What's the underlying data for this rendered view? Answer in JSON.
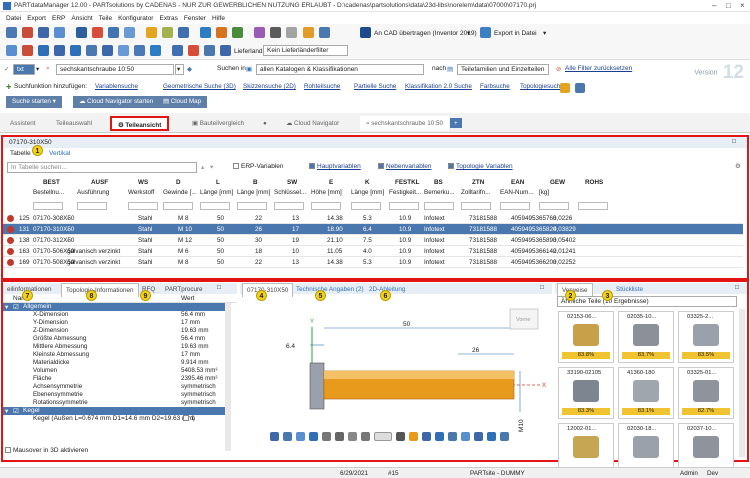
{
  "window": {
    "title": "PARTdataManager 12.00 - PARTsolutions by CADENAS - NUR ZUR GEWERBLICHEN NUTZUNG ERLAUBT - D:\\cadenas\\partsolutions\\data\\23d-libs\\norelem\\data\\07000\\07170.prj"
  },
  "menu": [
    "Datei",
    "Export",
    "ERP",
    "Ansicht",
    "Teile",
    "Konfigurator",
    "Extras",
    "Fenster",
    "Hilfe"
  ],
  "toolbar": {
    "cad_transfer": "An CAD übertragen (Inventor 2019)",
    "export": "Export in Datei",
    "supplier_label": "Lieferland:",
    "supplier_value": "Kein Lieferländerfilter"
  },
  "search": {
    "mode": "txt",
    "query": "sechskantschraube 10:50",
    "in_label": "Suchen in",
    "scope": "allen Katalogen & Klassifikationen",
    "after_label": "nach",
    "after_value": "Teilefamilien und Einzelteilen",
    "reset": "Alle Filter zurücksetzen"
  },
  "version": {
    "label": "Version",
    "number": "12"
  },
  "suggestions": {
    "label": "Suchfunktion hinzufügen:",
    "items": [
      "Variablensuche",
      "Geometrische Suche (3D)",
      "Skizzensuche (2D)",
      "Rohteilsuche",
      "Partielle Suche",
      "Klassifikation 2.0 Suche",
      "Farbsuche",
      "Topologiesuche"
    ]
  },
  "buttons": {
    "start_search": "Suche starten",
    "navigator_start": "Cloud Navigator starten",
    "map": "Cloud Map"
  },
  "tabs": [
    "Assistent",
    "Teileauswahl",
    "Teileansicht",
    "Bauteilvergleich",
    "Cloud Navigator",
    "sechskantschraube 10:50"
  ],
  "part": {
    "id": "07170-310X50",
    "subtabs": [
      "Tabelle",
      "Vertikal"
    ],
    "filter_placeholder": "In Tabelle suchen...",
    "options": [
      "ERP-Variablen",
      "Hauptvariablen",
      "Nebenvariablen",
      "Topologie Variablen"
    ]
  },
  "table": {
    "columns": [
      "BEST",
      "AUSF",
      "WS",
      "D",
      "L",
      "B",
      "SW",
      "E",
      "K",
      "FESTKL",
      "BS",
      "ZTN",
      "EAN",
      "GEW",
      "ROHS"
    ],
    "subheaders": [
      "Bestellnu...",
      "Ausführung",
      "Werkstoff",
      "Gewinde [...",
      "Länge [mm]",
      "Länge [mm]",
      "Schlüssel...",
      "Höhe [mm]",
      "Länge [mm]",
      "Festigkeit...",
      "Bemerku...",
      "Zolltarifn...",
      "EAN-Num...",
      "[kg]",
      ""
    ],
    "rows": [
      {
        "n": "125",
        "best": "07170-308X50",
        "ausf": "-",
        "ws": "Stahl",
        "d": "M 8",
        "l": "50",
        "b": "22",
        "sw": "13",
        "e": "14.38",
        "k": "5.3",
        "fk": "10.9",
        "bs": "Infotext",
        "ztn": "73181588",
        "ean": "4059495365763",
        "gew": "0,0226"
      },
      {
        "n": "131",
        "best": "07170-310X50",
        "ausf": "-",
        "ws": "Stahl",
        "d": "M 10",
        "l": "50",
        "b": "26",
        "sw": "17",
        "e": "18.90",
        "k": "6.4",
        "fk": "10.9",
        "bs": "Infotext",
        "ztn": "73181588",
        "ean": "4059495365824",
        "gew": "0,03829"
      },
      {
        "n": "138",
        "best": "07170-312X50",
        "ausf": "-",
        "ws": "Stahl",
        "d": "M 12",
        "l": "50",
        "b": "30",
        "sw": "19",
        "e": "21.10",
        "k": "7.5",
        "fk": "10.9",
        "bs": "Infotext",
        "ztn": "73181588",
        "ean": "4059495365893",
        "gew": "0,05402"
      },
      {
        "n": "163",
        "best": "07170-506X50",
        "ausf": "galvanisch verzinkt",
        "ws": "Stahl",
        "d": "M 6",
        "l": "50",
        "b": "18",
        "sw": "10",
        "e": "11.05",
        "k": "4.0",
        "fk": "10.9",
        "bs": "Infotext",
        "ztn": "73181588",
        "ean": "4059495366142",
        "gew": "0,01241"
      },
      {
        "n": "169",
        "best": "07170-508X50",
        "ausf": "galvanisch verzinkt",
        "ws": "Stahl",
        "d": "M 8",
        "l": "50",
        "b": "22",
        "sw": "13",
        "e": "14.38",
        "k": "5.3",
        "fk": "10.9",
        "bs": "Infotext",
        "ztn": "73181588",
        "ean": "4059495366203",
        "gew": "0,02252"
      }
    ]
  },
  "left": {
    "tabs": [
      "eilinformationen",
      "Topologie-Informationen",
      "RFQ",
      "PARTprocure"
    ],
    "head_name": "Name",
    "head_value": "Wert",
    "group": "Allgemein",
    "props": [
      [
        "X-Dimension",
        "56.4 mm"
      ],
      [
        "Y-Dimension",
        "17 mm"
      ],
      [
        "Z-Dimension",
        "19.63 mm"
      ],
      [
        "Größte Abmessung",
        "56.4 mm"
      ],
      [
        "Mittlere Abmessung",
        "19.63 mm"
      ],
      [
        "Kleinste Abmessung",
        "17 mm"
      ],
      [
        "Materialdicke",
        "9.914 mm"
      ],
      [
        "Volumen",
        "5408.53 mm³"
      ],
      [
        "Fläche",
        "2395.46 mm²"
      ],
      [
        "Achsensymmetrie",
        "symmetrisch"
      ],
      [
        "Ebenensymmetrie",
        "symmetrisch"
      ],
      [
        "Rotationssymmetrie",
        "symmetrisch"
      ]
    ],
    "group2": "Kegel",
    "cone": "Kegel (Außen L=0.674 mm D1=14.6 mm D2=19.63 mm)",
    "cone_count": "1",
    "footer": "Mausover in 3D aktivieren"
  },
  "mid": {
    "tabs": [
      "07170-310X50",
      "Technische Angaben (2)",
      "2D-Ableitung"
    ],
    "dims": [
      "6.4",
      "50",
      "26",
      "M10"
    ],
    "view": "Vorne"
  },
  "right": {
    "tabs": [
      "Verweise",
      "Stückliste"
    ],
    "filter": "Ähnliche Teile (10 Ergebnisse)",
    "items": [
      [
        "02153-06...",
        "83.8%"
      ],
      [
        "02035-10...",
        "83.7%"
      ],
      [
        "03325-2...",
        "83.5%"
      ],
      [
        "33190-02105",
        "83.3%"
      ],
      [
        "41360-180",
        "83.1%"
      ],
      [
        "03325-01...",
        "82.7%"
      ],
      [
        "12002-01...",
        ""
      ],
      [
        "02030-18...",
        ""
      ],
      [
        "02037-10...",
        ""
      ]
    ]
  },
  "badges": [
    "1",
    "2",
    "3",
    "4",
    "5",
    "6",
    "7",
    "8",
    "9"
  ],
  "status": {
    "date": "6/29/2021",
    "num": "#15",
    "lic": "PARTsite - DUMMY",
    "user": "Admin",
    "mode": "Dev"
  },
  "colors": {
    "accent": "#e31414",
    "selection": "#4a77ad",
    "badge": "#f2d21b",
    "part": "#e89a1c"
  }
}
